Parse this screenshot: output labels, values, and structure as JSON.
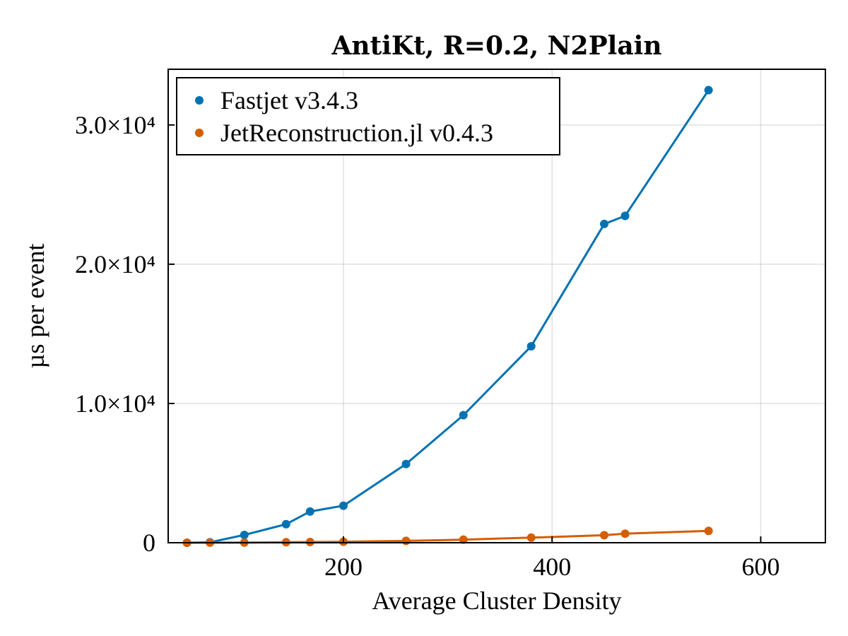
{
  "chart_data": {
    "type": "line",
    "title": "AntiKt, R=0.2, N2Plain",
    "xlabel": "Average Cluster Density",
    "ylabel": "µs per event",
    "xlim": [
      32,
      662
    ],
    "ylim": [
      0,
      34000
    ],
    "x_ticks": [
      200,
      400,
      600
    ],
    "y_ticks": [
      {
        "value": 0,
        "label": "0"
      },
      {
        "value": 10000,
        "label": "1.0×10⁴"
      },
      {
        "value": 20000,
        "label": "2.0×10⁴"
      },
      {
        "value": 30000,
        "label": "3.0×10⁴"
      }
    ],
    "grid": true,
    "legend_position": "top-left",
    "series": [
      {
        "name": "Fastjet v3.4.3",
        "color": "#0072b2",
        "x": [
          50,
          72,
          105,
          145,
          168,
          200,
          260,
          315,
          380,
          450,
          470,
          550
        ],
        "y": [
          0,
          30,
          560,
          1330,
          2240,
          2660,
          5650,
          9160,
          14110,
          22890,
          23470,
          32500
        ]
      },
      {
        "name": "JetReconstruction.jl v0.4.3",
        "color": "#d55e00",
        "x": [
          50,
          72,
          105,
          145,
          168,
          200,
          260,
          315,
          380,
          450,
          470,
          550
        ],
        "y": [
          0,
          5,
          15,
          35,
          50,
          70,
          135,
          220,
          365,
          540,
          650,
          850
        ]
      }
    ]
  }
}
